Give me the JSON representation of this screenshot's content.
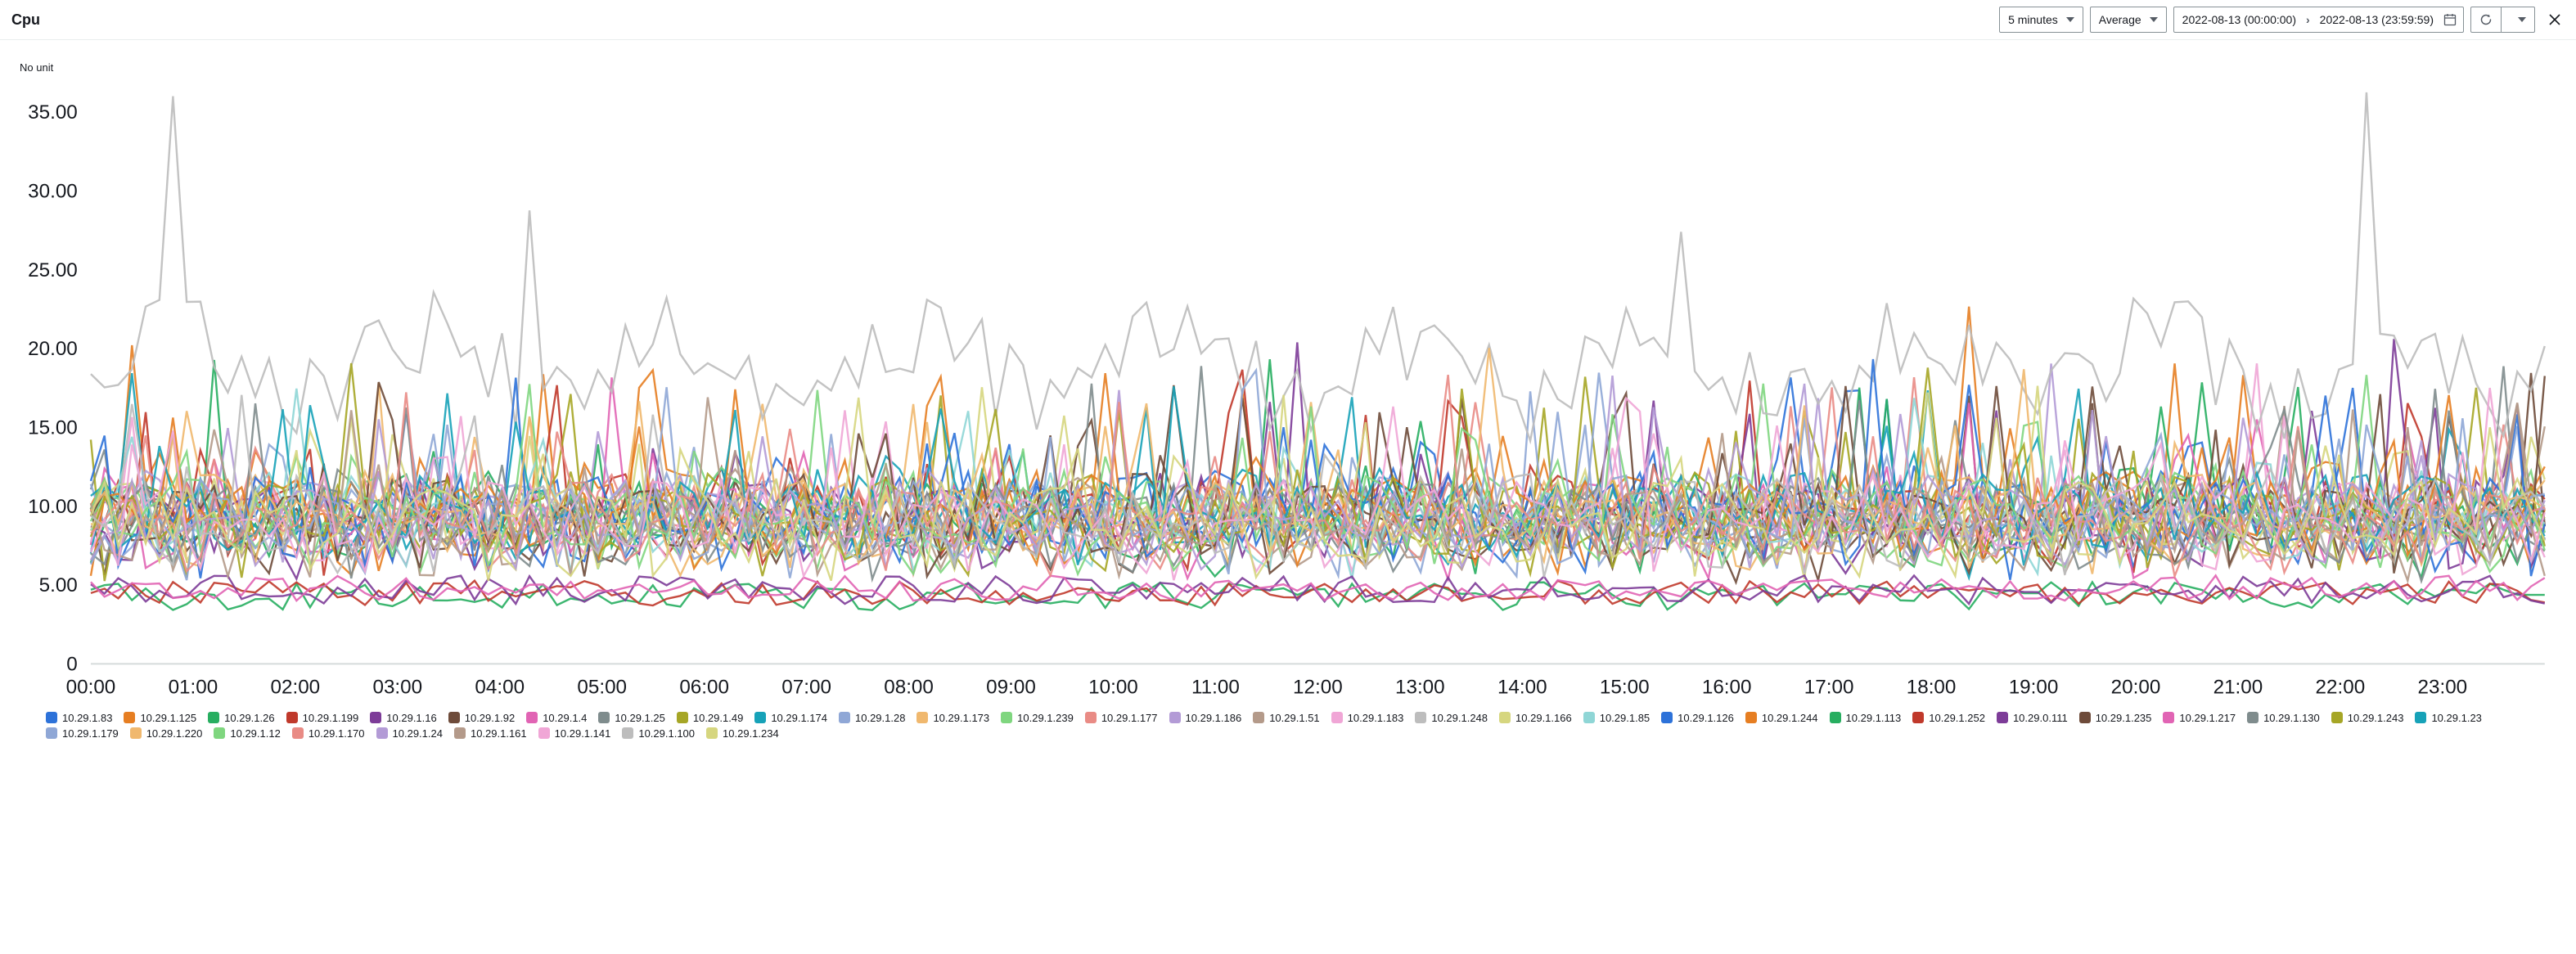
{
  "header": {
    "title": "Cpu",
    "period": {
      "label": "5 minutes"
    },
    "statistic": {
      "label": "Average"
    },
    "range": {
      "start": "2022-08-13 (00:00:00)",
      "end": "2022-08-13 (23:59:59)"
    }
  },
  "chart": {
    "type": "line",
    "y_axis_title": "No unit",
    "ylim": [
      0,
      36.5
    ],
    "yticks": [
      0,
      5.0,
      10.0,
      15.0,
      20.0,
      25.0,
      30.0,
      35.0
    ],
    "ytick_labels": [
      "0",
      "5.00",
      "10.00",
      "15.00",
      "20.00",
      "25.00",
      "30.00",
      "35.00"
    ],
    "xticks_hours": [
      0,
      1,
      2,
      3,
      4,
      5,
      6,
      7,
      8,
      9,
      10,
      11,
      12,
      13,
      14,
      15,
      16,
      17,
      18,
      19,
      20,
      21,
      22,
      23
    ],
    "xtick_labels": [
      "00:00",
      "01:00",
      "02:00",
      "03:00",
      "04:00",
      "05:00",
      "06:00",
      "07:00",
      "08:00",
      "09:00",
      "10:00",
      "11:00",
      "12:00",
      "13:00",
      "14:00",
      "15:00",
      "16:00",
      "17:00",
      "18:00",
      "19:00",
      "20:00",
      "21:00",
      "22:00",
      "23:00"
    ],
    "background_color": "#ffffff",
    "grid_color": "#f2f3f3",
    "axis_text_color": "#16191f",
    "line_width": 1.2,
    "points_per_series": 180,
    "series": [
      {
        "label": "10.29.1.83",
        "color": "#2d72d9",
        "base": 7.5,
        "amp": 6.0,
        "seed": 1
      },
      {
        "label": "10.29.1.125",
        "color": "#e67e22",
        "base": 7.8,
        "amp": 6.2,
        "seed": 2
      },
      {
        "label": "10.29.1.26",
        "color": "#27ae60",
        "base": 7.2,
        "amp": 5.8,
        "seed": 3
      },
      {
        "label": "10.29.1.199",
        "color": "#c0392b",
        "base": 7.6,
        "amp": 5.9,
        "seed": 4
      },
      {
        "label": "10.29.1.16",
        "color": "#7d3c98",
        "base": 7.3,
        "amp": 5.5,
        "seed": 5
      },
      {
        "label": "10.29.1.92",
        "color": "#6e4b3a",
        "base": 7.0,
        "amp": 5.4,
        "seed": 6
      },
      {
        "label": "10.29.1.4",
        "color": "#e164b4",
        "base": 7.1,
        "amp": 5.6,
        "seed": 7
      },
      {
        "label": "10.29.1.25",
        "color": "#7f8c8d",
        "base": 7.4,
        "amp": 5.3,
        "seed": 8
      },
      {
        "label": "10.29.1.49",
        "color": "#a6a626",
        "base": 7.2,
        "amp": 5.7,
        "seed": 9
      },
      {
        "label": "10.29.1.174",
        "color": "#17a2b8",
        "base": 7.5,
        "amp": 5.8,
        "seed": 10
      },
      {
        "label": "10.29.1.28",
        "color": "#8fa7d6",
        "base": 7.3,
        "amp": 5.2,
        "seed": 11
      },
      {
        "label": "10.29.1.173",
        "color": "#f0b86e",
        "base": 7.4,
        "amp": 5.4,
        "seed": 12
      },
      {
        "label": "10.29.1.239",
        "color": "#7fd67f",
        "base": 7.6,
        "amp": 5.6,
        "seed": 13
      },
      {
        "label": "10.29.1.177",
        "color": "#e98b85",
        "base": 7.2,
        "amp": 5.3,
        "seed": 14
      },
      {
        "label": "10.29.1.186",
        "color": "#b39bd6",
        "base": 7.5,
        "amp": 5.5,
        "seed": 15
      },
      {
        "label": "10.29.1.51",
        "color": "#b49a8a",
        "base": 7.1,
        "amp": 5.1,
        "seed": 16
      },
      {
        "label": "10.29.1.183",
        "color": "#f0a6d6",
        "base": 7.3,
        "amp": 5.4,
        "seed": 17
      },
      {
        "label": "10.29.1.248",
        "color": "#bdbdbd",
        "base": 19.0,
        "amp": 6.0,
        "seed": 18,
        "outlier": true
      },
      {
        "label": "10.29.1.166",
        "color": "#d6d67f",
        "base": 7.0,
        "amp": 5.2,
        "seed": 19
      },
      {
        "label": "10.29.1.85",
        "color": "#8fd6d6",
        "base": 7.4,
        "amp": 5.6,
        "seed": 20
      },
      {
        "label": "10.29.1.126",
        "color": "#2d72d9",
        "base": 7.2,
        "amp": 5.3,
        "seed": 21
      },
      {
        "label": "10.29.1.244",
        "color": "#e67e22",
        "base": 7.5,
        "amp": 5.7,
        "seed": 22
      },
      {
        "label": "10.29.1.113",
        "color": "#27ae60",
        "base": 4.3,
        "amp": 0.9,
        "seed": 23,
        "flat": true
      },
      {
        "label": "10.29.1.252",
        "color": "#c0392b",
        "base": 4.5,
        "amp": 0.8,
        "seed": 24,
        "flat": true
      },
      {
        "label": "10.29.0.111",
        "color": "#7d3c98",
        "base": 4.7,
        "amp": 0.9,
        "seed": 25,
        "flat": true
      },
      {
        "label": "10.29.1.235",
        "color": "#6e4b3a",
        "base": 7.3,
        "amp": 5.4,
        "seed": 26
      },
      {
        "label": "10.29.1.217",
        "color": "#e164b4",
        "base": 4.8,
        "amp": 0.8,
        "seed": 27,
        "flat": true
      },
      {
        "label": "10.29.1.130",
        "color": "#7f8c8d",
        "base": 7.1,
        "amp": 5.2,
        "seed": 28
      },
      {
        "label": "10.29.1.243",
        "color": "#a6a626",
        "base": 7.4,
        "amp": 5.5,
        "seed": 29
      },
      {
        "label": "10.29.1.23",
        "color": "#17a2b8",
        "base": 7.6,
        "amp": 5.8,
        "seed": 30
      },
      {
        "label": "10.29.1.179",
        "color": "#8fa7d6",
        "base": 7.2,
        "amp": 5.3,
        "seed": 31
      },
      {
        "label": "10.29.1.220",
        "color": "#f0b86e",
        "base": 7.5,
        "amp": 5.6,
        "seed": 32
      },
      {
        "label": "10.29.1.12",
        "color": "#7fd67f",
        "base": 7.3,
        "amp": 5.4,
        "seed": 33
      },
      {
        "label": "10.29.1.170",
        "color": "#e98b85",
        "base": 7.1,
        "amp": 5.2,
        "seed": 34
      },
      {
        "label": "10.29.1.24",
        "color": "#b39bd6",
        "base": 7.4,
        "amp": 5.5,
        "seed": 35
      },
      {
        "label": "10.29.1.161",
        "color": "#b49a8a",
        "base": 7.0,
        "amp": 5.1,
        "seed": 36
      },
      {
        "label": "10.29.1.141",
        "color": "#f0a6d6",
        "base": 7.2,
        "amp": 5.3,
        "seed": 37
      },
      {
        "label": "10.29.1.100",
        "color": "#bdbdbd",
        "base": 7.3,
        "amp": 5.4,
        "seed": 38
      },
      {
        "label": "10.29.1.234",
        "color": "#d6d67f",
        "base": 7.1,
        "amp": 5.2,
        "seed": 39
      }
    ]
  }
}
